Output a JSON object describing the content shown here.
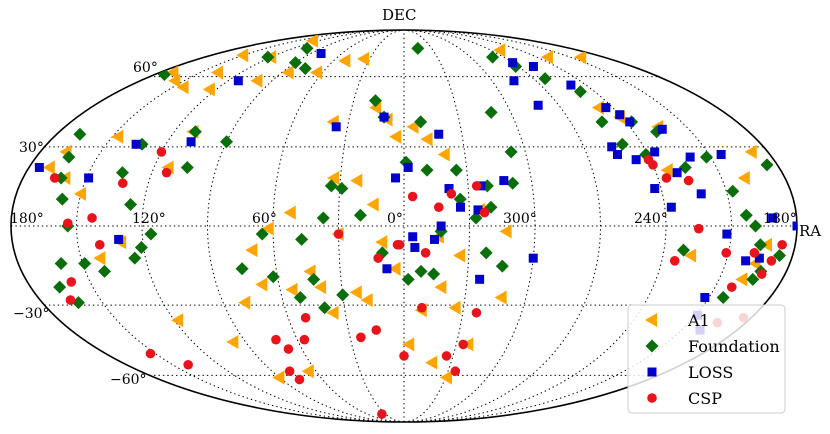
{
  "chart_data": {
    "type": "scatter",
    "projection": "mollweide",
    "xlabel": "RA",
    "ylabel": "DEC",
    "x_ticks": [
      "180°",
      "120°",
      "60°",
      "0°",
      "300°",
      "240°",
      "180°"
    ],
    "y_ticks": [
      "60°",
      "30°",
      "−30°",
      "−60°"
    ],
    "grid": true,
    "legend": "lower-right",
    "series": [
      {
        "name": "A1",
        "marker": "triangle-left",
        "color": "#ffa500",
        "points": [
          [
            167,
            28
          ],
          [
            170,
            22
          ],
          [
            160,
            18
          ],
          [
            147,
            34
          ],
          [
            150,
            12
          ],
          [
            110,
            36
          ],
          [
            113,
            22
          ],
          [
            141,
            -12
          ],
          [
            130,
            -6
          ],
          [
            118,
            -36
          ],
          [
            97,
            -45
          ],
          [
            90,
            -61
          ],
          [
            65,
            -58
          ],
          [
            79,
            -29
          ],
          [
            70,
            -9
          ],
          [
            44,
            -17
          ],
          [
            36,
            -33
          ],
          [
            40,
            -23
          ],
          [
            23,
            -25
          ],
          [
            18,
            -28
          ],
          [
            10,
            -6
          ],
          [
            4,
            -16
          ],
          [
            14,
            8
          ],
          [
            52,
            5
          ],
          [
            62,
            -1
          ],
          [
            54,
            -24
          ],
          [
            68,
            -22
          ],
          [
            30,
            -3
          ],
          [
            22,
            17
          ],
          [
            33,
            18
          ],
          [
            9,
            41
          ],
          [
            16,
            46
          ],
          [
            38,
            40
          ],
          [
            4,
            34
          ],
          [
            -5,
            38
          ],
          [
            -12,
            33
          ],
          [
            -20,
            27
          ],
          [
            -35,
            6
          ],
          [
            -47,
            -2
          ],
          [
            -26,
            -31
          ],
          [
            -9,
            -32
          ],
          [
            -3,
            -46
          ],
          [
            -18,
            -54
          ],
          [
            -31,
            -61
          ],
          [
            -37,
            -46
          ],
          [
            -48,
            -27
          ],
          [
            -26,
            -11
          ],
          [
            -16,
            -4
          ],
          [
            -18,
            -23
          ],
          [
            170,
            62
          ],
          [
            120,
            70
          ],
          [
            128,
            80
          ],
          [
            150,
            71
          ],
          [
            137,
            62
          ],
          [
            143,
            55
          ],
          [
            156,
            58
          ],
          [
            124,
            54
          ],
          [
            100,
            58
          ],
          [
            85,
            62
          ],
          [
            64,
            62
          ],
          [
            50,
            68
          ],
          [
            35,
            69
          ],
          [
            -100,
            74
          ],
          [
            -130,
            70
          ],
          [
            -160,
            70
          ],
          [
            -135,
            38
          ],
          [
            -112,
            46
          ],
          [
            -119,
            42
          ],
          [
            -126,
            21
          ],
          [
            -161,
            18
          ],
          [
            -172,
            28
          ],
          [
            -164,
            -14
          ],
          [
            -167,
            -7
          ],
          [
            -161,
            -20
          ],
          [
            -133,
            -11
          ]
        ]
      },
      {
        "name": "Foundation",
        "marker": "diamond",
        "color": "#0a6e0a",
        "points": [
          [
            168,
            35
          ],
          [
            164,
            26
          ],
          [
            162,
            18
          ],
          [
            158,
            10
          ],
          [
            154,
            0
          ],
          [
            149,
            -14
          ],
          [
            160,
            -14
          ],
          [
            162,
            -29
          ],
          [
            166,
            -23
          ],
          [
            132,
            31
          ],
          [
            134,
            20
          ],
          [
            126,
            8
          ],
          [
            121,
            -8
          ],
          [
            125,
            -12
          ],
          [
            116,
            -3
          ],
          [
            141,
            -17
          ],
          [
            109,
            36
          ],
          [
            90,
            32
          ],
          [
            104,
            22
          ],
          [
            76,
            -16
          ],
          [
            65,
            -3
          ],
          [
            62,
            -19
          ],
          [
            51,
            -27
          ],
          [
            43,
            -20
          ],
          [
            37,
            3
          ],
          [
            30,
            -26
          ],
          [
            40,
            -31
          ],
          [
            47,
            -5
          ],
          [
            29,
            14
          ],
          [
            20,
            4
          ],
          [
            10,
            -10
          ],
          [
            34,
            15
          ],
          [
            17,
            49
          ],
          [
            11,
            42
          ],
          [
            -1,
            24
          ],
          [
            -9,
            40
          ],
          [
            -11,
            21
          ],
          [
            -25,
            21
          ],
          [
            -26,
            10
          ],
          [
            -33,
            3
          ],
          [
            -17,
            -2
          ],
          [
            -2,
            -20
          ],
          [
            -8,
            -17
          ],
          [
            -14,
            -18
          ],
          [
            -38,
            -10
          ],
          [
            -46,
            -15
          ],
          [
            -39,
            15
          ],
          [
            -40,
            7
          ],
          [
            -51,
            16
          ],
          [
            -53,
            28
          ],
          [
            -49,
            44
          ],
          [
            173,
            61
          ],
          [
            123,
            70
          ],
          [
            105,
            75
          ],
          [
            90,
            67
          ],
          [
            76,
            64
          ],
          [
            -15,
            75
          ],
          [
            -88,
            65
          ],
          [
            -80,
            70
          ],
          [
            -98,
            59
          ],
          [
            -111,
            53
          ],
          [
            -107,
            40
          ],
          [
            -110,
            31
          ],
          [
            -123,
            40
          ],
          [
            -119,
            27
          ],
          [
            -132,
            36
          ],
          [
            -135,
            22
          ],
          [
            -148,
            26
          ],
          [
            -153,
            13
          ],
          [
            -157,
            4
          ],
          [
            -161,
            0
          ],
          [
            -164,
            -7
          ],
          [
            -157,
            -27
          ],
          [
            -174,
            -11
          ],
          [
            -168,
            -17
          ],
          [
            -166,
            -20
          ],
          [
            -129,
            -9
          ],
          [
            -175,
            23
          ]
        ]
      },
      {
        "name": "LOSS",
        "marker": "square",
        "color": "#0000cc",
        "points": [
          [
            175,
            22
          ],
          [
            149,
            18
          ],
          [
            135,
            31
          ],
          [
            113,
            58
          ],
          [
            108,
            32
          ],
          [
            131,
            -5
          ],
          [
            80,
            72
          ],
          [
            36,
            38
          ],
          [
            11,
            42
          ],
          [
            4,
            18
          ],
          [
            -4,
            -4
          ],
          [
            -5,
            -8
          ],
          [
            -21,
            14
          ],
          [
            -36,
            15
          ],
          [
            -47,
            17
          ],
          [
            -34,
            6
          ],
          [
            -26,
            7
          ],
          [
            -17,
            0
          ],
          [
            -2,
            22
          ],
          [
            -14,
            -5
          ],
          [
            -36,
            -20
          ],
          [
            8,
            -16
          ],
          [
            -18,
            35
          ],
          [
            -104,
            30
          ],
          [
            -105,
            27
          ],
          [
            -113,
            25
          ],
          [
            -117,
            14
          ],
          [
            -130,
            20
          ],
          [
            -148,
            -3
          ],
          [
            -159,
            -13
          ],
          [
            -165,
            -12
          ],
          [
            -169,
            3
          ],
          [
            -180,
            0
          ],
          [
            -78,
            47
          ],
          [
            -120,
            43
          ],
          [
            -122,
            40
          ],
          [
            -136,
            37
          ],
          [
            -140,
            26
          ],
          [
            -156,
            27
          ],
          [
            -123,
            7
          ],
          [
            -60,
            -12
          ],
          [
            -148,
            -27
          ],
          [
            -151,
            -34
          ],
          [
            -160,
            -40
          ],
          [
            -75,
            58
          ],
          [
            -90,
            67
          ],
          [
            -102,
            65
          ],
          [
            -110,
            56
          ],
          [
            -116,
            46
          ],
          [
            -124,
            28
          ],
          [
            -138,
            12
          ]
        ]
      },
      {
        "name": "CSP",
        "marker": "circle",
        "color": "#e8141c",
        "points": [
          [
            165,
            18
          ],
          [
            154,
            1
          ],
          [
            143,
            3
          ],
          [
            140,
            -7
          ],
          [
            132,
            16
          ],
          [
            159,
            -21
          ],
          [
            165,
            -28
          ],
          [
            153,
            -50
          ],
          [
            140,
            -55
          ],
          [
            120,
            28
          ],
          [
            113,
            20
          ],
          [
            72,
            -44
          ],
          [
            68,
            -48
          ],
          [
            56,
            -44
          ],
          [
            51,
            -35
          ],
          [
            78,
            -58
          ],
          [
            77,
            -62
          ],
          [
            36,
            -82
          ],
          [
            0,
            -51
          ],
          [
            24,
            -43
          ],
          [
            15,
            -40
          ],
          [
            12,
            -12
          ],
          [
            3,
            -7
          ],
          [
            -9,
            -31
          ],
          [
            -26,
            -51
          ],
          [
            -35,
            -58
          ],
          [
            -4,
            11
          ],
          [
            2,
            -7
          ],
          [
            -16,
            7
          ],
          [
            -37,
            -33
          ],
          [
            -34,
            -46
          ],
          [
            -10,
            -10
          ],
          [
            -37,
            5
          ],
          [
            -22,
            12
          ],
          [
            -34,
            15
          ],
          [
            30,
            -3
          ],
          [
            -126,
            -13
          ],
          [
            -135,
            -1
          ],
          [
            -149,
            -10
          ],
          [
            -162,
            -10
          ],
          [
            -174,
            -7
          ],
          [
            -158,
            -23
          ],
          [
            -165,
            -37
          ],
          [
            -169,
            -18
          ],
          [
            -171,
            -13
          ],
          [
            -176,
            -35
          ],
          [
            -119,
            25
          ],
          [
            -120,
            23
          ],
          [
            -124,
            18
          ],
          [
            -134,
            17
          ]
        ]
      }
    ]
  }
}
